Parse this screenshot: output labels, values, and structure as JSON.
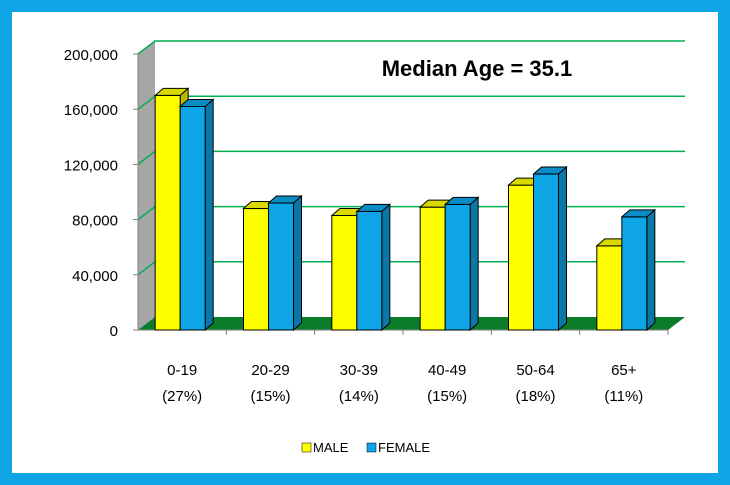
{
  "chart_data": {
    "type": "bar",
    "title": "Median Age = 35.1",
    "categories": [
      "0-19",
      "20-29",
      "30-39",
      "40-49",
      "50-64",
      "65+"
    ],
    "category_shares": [
      "(27%)",
      "(15%)",
      "(14%)",
      "(15%)",
      "(18%)",
      "(11%)"
    ],
    "series": [
      {
        "name": "MALE",
        "values": [
          170000,
          88000,
          83000,
          89000,
          105000,
          61000
        ],
        "color": "#ffff00"
      },
      {
        "name": "FEMALE",
        "values": [
          162000,
          92000,
          86000,
          91000,
          113000,
          82000
        ],
        "color": "#0ea5e6"
      }
    ],
    "yticks": [
      "0",
      "40,000",
      "80,000",
      "120,000",
      "160,000",
      "200,000"
    ],
    "ylim": [
      0,
      200000
    ],
    "grid": true,
    "legend_position": "bottom",
    "colors": {
      "border": "#0ea5e6",
      "gridline": "#00b050",
      "floor": "#0b7d2a",
      "wall": "#a6a6a6"
    }
  }
}
